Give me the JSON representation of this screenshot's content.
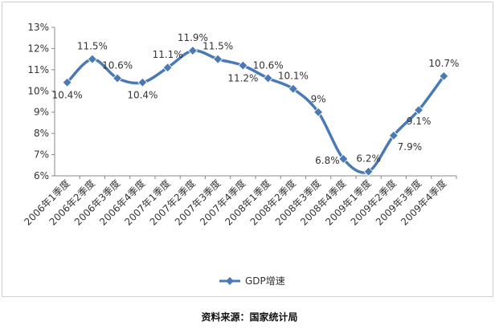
{
  "chart_data": {
    "type": "line",
    "title": "",
    "xlabel": "",
    "ylabel": "",
    "categories": [
      "2006年1季度",
      "2006年2季度",
      "2006年3季度",
      "2006年4季度",
      "2007年1季度",
      "2007年2季度",
      "2007年3季度",
      "2007年4季度",
      "2008年1季度",
      "2008年2季度",
      "2008年3季度",
      "2008年4季度",
      "2009年1季度",
      "2009年2季度",
      "2009年3季度",
      "2009年4季度"
    ],
    "series": [
      {
        "name": "GDP增速",
        "values": [
          10.4,
          11.5,
          10.6,
          10.4,
          11.1,
          11.9,
          11.5,
          11.2,
          10.6,
          10.1,
          9,
          6.8,
          6.2,
          7.9,
          9.1,
          10.7
        ]
      }
    ],
    "data_labels": [
      "10.4%",
      "11.5%",
      "10.6%",
      "10.4%",
      "11.1%",
      "11.9%",
      "11.5%",
      "11.2%",
      "10.6%",
      "10.1%",
      "9%",
      "6.8%",
      "6.2%",
      "7.9%",
      "9.1%",
      "10.7%"
    ],
    "y_ticks": [
      "6%",
      "7%",
      "8%",
      "9%",
      "10%",
      "11%",
      "12%",
      "13%"
    ],
    "ylim": [
      6,
      13
    ],
    "grid": false,
    "legend_position": "bottom",
    "line_color": "#4a7ab5"
  },
  "source_note": "资料来源：国家统计局"
}
